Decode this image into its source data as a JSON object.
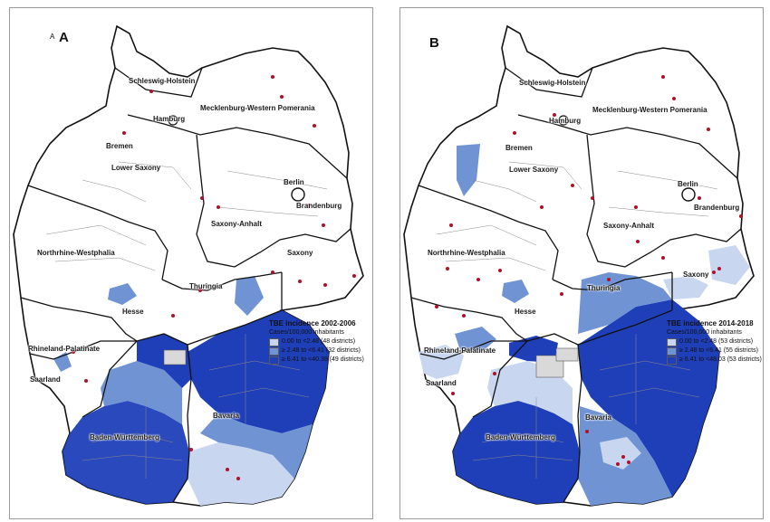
{
  "colors": {
    "low": "#c8d7ef",
    "mid": "#6f93d3",
    "high": "#1f3fb8",
    "none": "#ffffff",
    "dot": "#b0102a",
    "state_border": "#111111",
    "district_border": "#8a8a8a"
  },
  "panels": [
    {
      "id": "A",
      "letter": "A",
      "small_letter": "A",
      "legend": {
        "title": "TBE incidence 2002-2006",
        "subtitle": "Cases/100,000 inhabitants",
        "items": [
          {
            "label": "0.00 to <2.48 (48 districts)",
            "level": "low"
          },
          {
            "label": "≥ 2.48 to <6.41 (32 districts)",
            "level": "mid"
          },
          {
            "label": "≥ 6.41 to <40.38 (49 districts)",
            "level": "high"
          }
        ]
      }
    },
    {
      "id": "B",
      "letter": "B",
      "small_letter": "",
      "legend": {
        "title": "TBE incidence 2014-2018",
        "subtitle": "Cases/100,000 inhabitants",
        "items": [
          {
            "label": "0.00 to <2.48 (53 districts)",
            "level": "low"
          },
          {
            "label": "≥ 2.48 to <6.41 (55 districts)",
            "level": "mid"
          },
          {
            "label": "≥ 6.41 to <48.03 (53 districts)",
            "level": "high"
          }
        ]
      }
    }
  ],
  "states": {
    "schleswig_holstein": "Schleswig-Holstein",
    "hamburg": "Hamburg",
    "mecklenburg": "Mecklenburg-Western Pomerania",
    "bremen": "Bremen",
    "lower_saxony": "Lower Saxony",
    "berlin": "Berlin",
    "brandenburg": "Brandenburg",
    "saxony_anhalt": "Saxony-Anhalt",
    "nrw": "Northrhine-Westphalia",
    "saxony": "Saxony",
    "thuringia": "Thuringia",
    "hesse": "Hesse",
    "rhineland_palatinate": "Rhineland-Palatinate",
    "saarland": "Saarland",
    "bavaria": "Bavaria",
    "baden_wuerttemberg": "Baden-Württemberg"
  }
}
